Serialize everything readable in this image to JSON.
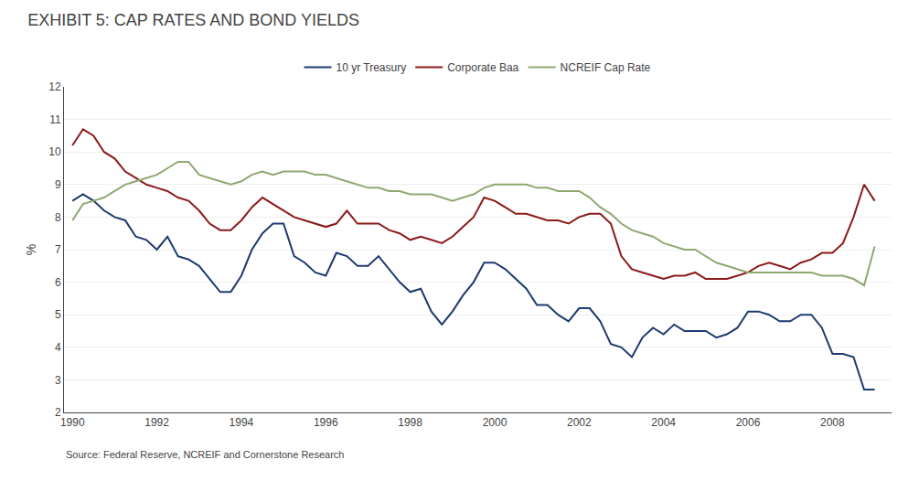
{
  "chart_data": {
    "type": "line",
    "title": "EXHIBIT 5: CAP RATES AND BOND YIELDS",
    "y_label": "%",
    "annotations": [
      "Source: Federal Reserve, NCREIF and Cornerstone Research"
    ],
    "x": [
      1990.0,
      1990.25,
      1990.5,
      1990.75,
      1991.0,
      1991.25,
      1991.5,
      1991.75,
      1992.0,
      1992.25,
      1992.5,
      1992.75,
      1993.0,
      1993.25,
      1993.5,
      1993.75,
      1994.0,
      1994.25,
      1994.5,
      1994.75,
      1995.0,
      1995.25,
      1995.5,
      1995.75,
      1996.0,
      1996.25,
      1996.5,
      1996.75,
      1997.0,
      1997.25,
      1997.5,
      1997.75,
      1998.0,
      1998.25,
      1998.5,
      1998.75,
      1999.0,
      1999.25,
      1999.5,
      1999.75,
      2000.0,
      2000.25,
      2000.5,
      2000.75,
      2001.0,
      2001.25,
      2001.5,
      2001.75,
      2002.0,
      2002.25,
      2002.5,
      2002.75,
      2003.0,
      2003.25,
      2003.5,
      2003.75,
      2004.0,
      2004.25,
      2004.5,
      2004.75,
      2005.0,
      2005.25,
      2005.5,
      2005.75,
      2006.0,
      2006.25,
      2006.5,
      2006.75,
      2007.0,
      2007.25,
      2007.5,
      2007.75,
      2008.0,
      2008.25,
      2008.5,
      2008.75,
      2009.0
    ],
    "series": [
      {
        "name": "10 yr Treasury",
        "color": "#1e3a6e",
        "values": [
          8.5,
          8.7,
          8.5,
          8.2,
          8.0,
          7.9,
          7.4,
          7.3,
          7.0,
          7.4,
          6.8,
          6.7,
          6.5,
          6.1,
          5.7,
          5.7,
          6.2,
          7.0,
          7.5,
          7.8,
          7.8,
          6.8,
          6.6,
          6.3,
          6.2,
          6.9,
          6.8,
          6.5,
          6.5,
          6.8,
          6.4,
          6.0,
          5.7,
          5.8,
          5.1,
          4.7,
          5.1,
          5.6,
          6.0,
          6.6,
          6.6,
          6.4,
          6.1,
          5.8,
          5.3,
          5.3,
          5.0,
          4.8,
          5.2,
          5.2,
          4.8,
          4.1,
          4.0,
          3.7,
          4.3,
          4.6,
          4.4,
          4.7,
          4.5,
          4.5,
          4.5,
          4.3,
          4.4,
          4.6,
          5.1,
          5.1,
          5.0,
          4.8,
          4.8,
          5.0,
          5.0,
          4.6,
          3.8,
          3.8,
          3.7,
          2.7,
          2.7
        ]
      },
      {
        "name": "Corporate Baa",
        "color": "#8b1a1a",
        "values": [
          10.2,
          10.7,
          10.5,
          10.0,
          9.8,
          9.4,
          9.2,
          9.0,
          8.9,
          8.8,
          8.6,
          8.5,
          8.2,
          7.8,
          7.6,
          7.6,
          7.9,
          8.3,
          8.6,
          8.4,
          8.2,
          8.0,
          7.9,
          7.8,
          7.7,
          7.8,
          8.2,
          7.8,
          7.8,
          7.8,
          7.6,
          7.5,
          7.3,
          7.4,
          7.3,
          7.2,
          7.4,
          7.7,
          8.0,
          8.6,
          8.5,
          8.3,
          8.1,
          8.1,
          8.0,
          7.9,
          7.9,
          7.8,
          8.0,
          8.1,
          8.1,
          7.8,
          6.8,
          6.4,
          6.3,
          6.2,
          6.1,
          6.2,
          6.2,
          6.3,
          6.1,
          6.1,
          6.1,
          6.2,
          6.3,
          6.5,
          6.6,
          6.5,
          6.4,
          6.6,
          6.7,
          6.9,
          6.9,
          7.2,
          8.0,
          9.0,
          8.5
        ]
      },
      {
        "name": "NCREIF Cap Rate",
        "color": "#8fa870",
        "values": [
          7.9,
          8.4,
          8.5,
          8.6,
          8.8,
          9.0,
          9.1,
          9.2,
          9.3,
          9.5,
          9.7,
          9.7,
          9.3,
          9.2,
          9.1,
          9.0,
          9.1,
          9.3,
          9.4,
          9.3,
          9.4,
          9.4,
          9.4,
          9.3,
          9.3,
          9.2,
          9.1,
          9.0,
          8.9,
          8.9,
          8.8,
          8.8,
          8.7,
          8.7,
          8.7,
          8.6,
          8.5,
          8.6,
          8.7,
          8.9,
          9.0,
          9.0,
          9.0,
          9.0,
          8.9,
          8.9,
          8.8,
          8.8,
          8.8,
          8.6,
          8.3,
          8.1,
          7.8,
          7.6,
          7.5,
          7.4,
          7.2,
          7.1,
          7.0,
          7.0,
          6.8,
          6.6,
          6.5,
          6.4,
          6.3,
          6.3,
          6.3,
          6.3,
          6.3,
          6.3,
          6.3,
          6.2,
          6.2,
          6.2,
          6.1,
          5.9,
          7.1
        ]
      }
    ],
    "xlim": [
      1989.8,
      2009.4
    ],
    "xticks": [
      1990,
      1992,
      1994,
      1996,
      1998,
      2000,
      2002,
      2004,
      2006,
      2008
    ],
    "ylim": [
      2,
      12
    ],
    "yticks": [
      2,
      3,
      4,
      5,
      6,
      7,
      8,
      9,
      10,
      11,
      12
    ],
    "grid": "y",
    "legend": "top"
  }
}
